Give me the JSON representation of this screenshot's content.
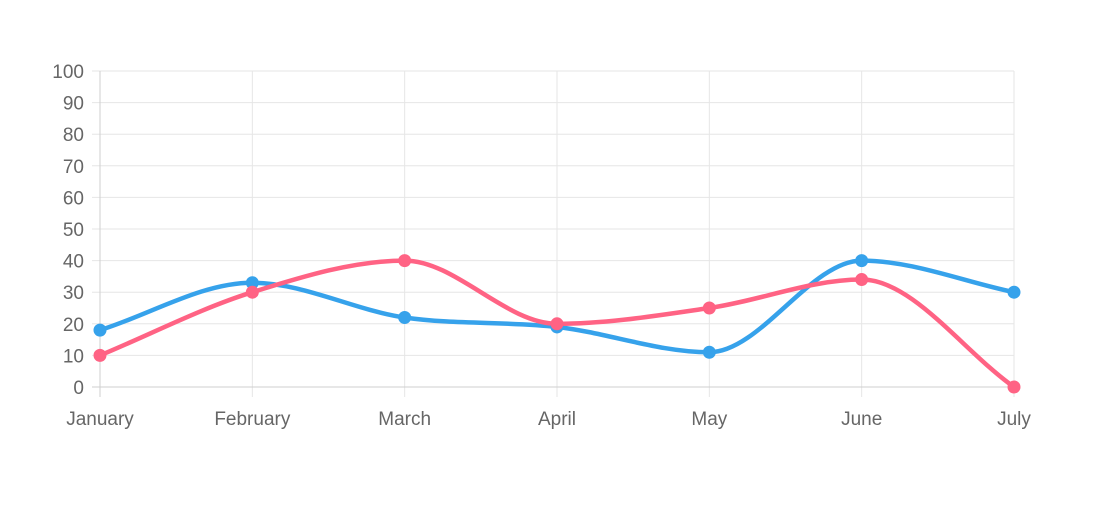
{
  "chart_data": {
    "type": "line",
    "categories": [
      "January",
      "February",
      "March",
      "April",
      "May",
      "June",
      "July"
    ],
    "series": [
      {
        "color": "#36a2eb",
        "values": [
          18,
          33,
          22,
          19,
          11,
          40,
          30
        ]
      },
      {
        "color": "#ff6384",
        "values": [
          10,
          30,
          40,
          20,
          25,
          34,
          0
        ]
      }
    ],
    "title": "",
    "xlabel": "",
    "ylabel": "",
    "ylim": [
      0,
      100
    ],
    "yticks": [
      "0",
      "10",
      "20",
      "30",
      "40",
      "50",
      "60",
      "70",
      "80",
      "90",
      "100"
    ],
    "grid": true,
    "legend": "none",
    "curve": "smooth"
  }
}
